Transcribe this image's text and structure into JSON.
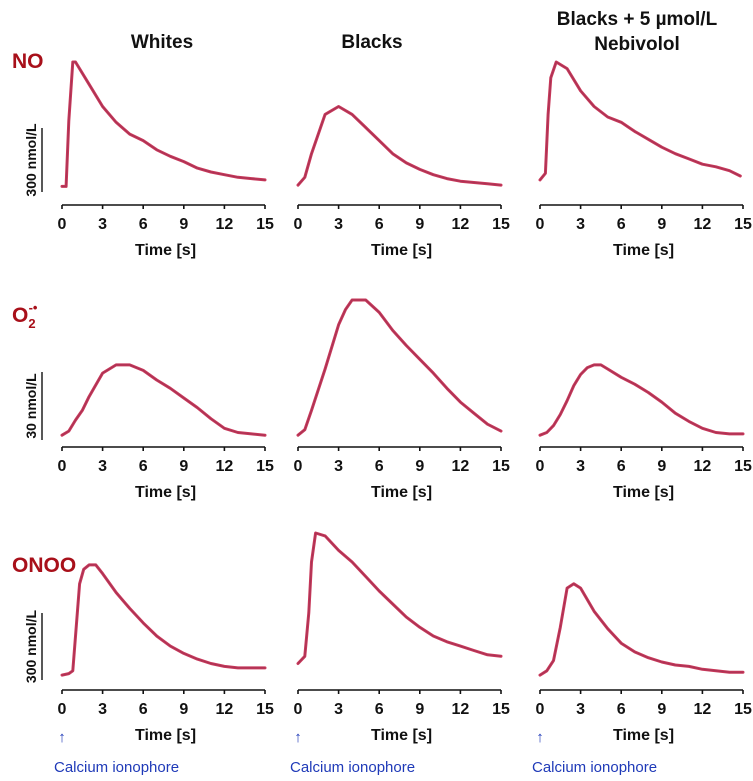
{
  "chart_data": {
    "type": "line",
    "columns": [
      {
        "title_lines": [
          "Whites"
        ]
      },
      {
        "title_lines": [
          "Blacks"
        ]
      },
      {
        "title_lines": [
          "Blacks + 5 µmol/L",
          "Nebivolol"
        ]
      }
    ],
    "rows": [
      {
        "label": "NO",
        "superscript": "",
        "subscript": "",
        "scale_label": "300 nmol/L"
      },
      {
        "label": "O",
        "subscript": "2",
        "superscript": "-•",
        "scale_label": "30 nmol/L"
      },
      {
        "label": "ONOO",
        "superscript": "",
        "subscript": "",
        "scale_label": "300 nmol/L"
      }
    ],
    "xlabel": "Time [s]",
    "xticks": [
      0,
      3,
      6,
      9,
      12,
      15
    ],
    "xlim": [
      0,
      15
    ],
    "ylim_note": "relative concentration, 0 = baseline, 1 = panel maximum",
    "ylim": [
      0,
      1
    ],
    "line_color": "#c8385a",
    "row_label_color": "#a8101a",
    "ionophore": {
      "label": "Calcium ionophore",
      "arrow": "↑",
      "color": "#1f3ab8",
      "time": 0
    },
    "series": [
      {
        "row": 0,
        "col": 0,
        "x": [
          0,
          0.3,
          0.5,
          0.8,
          1.0,
          2,
          3,
          4,
          5,
          6,
          7,
          8,
          9,
          10,
          11,
          12,
          13,
          14,
          15
        ],
        "y": [
          0.05,
          0.05,
          0.55,
          1.0,
          1.0,
          0.83,
          0.66,
          0.54,
          0.45,
          0.4,
          0.33,
          0.28,
          0.24,
          0.19,
          0.16,
          0.14,
          0.12,
          0.11,
          0.1
        ]
      },
      {
        "row": 0,
        "col": 1,
        "x": [
          0,
          0.5,
          1,
          2,
          3,
          4,
          5,
          6,
          7,
          8,
          9,
          10,
          11,
          12,
          13,
          14,
          15
        ],
        "y": [
          0.06,
          0.12,
          0.3,
          0.6,
          0.66,
          0.6,
          0.5,
          0.4,
          0.3,
          0.23,
          0.18,
          0.14,
          0.11,
          0.09,
          0.08,
          0.07,
          0.06
        ]
      },
      {
        "row": 0,
        "col": 2,
        "x": [
          0,
          0.4,
          0.6,
          0.8,
          1.2,
          2,
          3,
          4,
          5,
          6,
          7,
          8,
          9,
          10,
          11,
          12,
          13,
          14,
          14.8
        ],
        "y": [
          0.1,
          0.15,
          0.6,
          0.88,
          1.0,
          0.95,
          0.78,
          0.66,
          0.58,
          0.54,
          0.47,
          0.41,
          0.35,
          0.3,
          0.26,
          0.22,
          0.2,
          0.17,
          0.13
        ]
      },
      {
        "row": 1,
        "col": 0,
        "x": [
          0,
          0.5,
          1,
          1.5,
          2,
          3,
          4,
          5,
          6,
          7,
          8,
          9,
          10,
          11,
          12,
          13,
          14,
          15
        ],
        "y": [
          0.02,
          0.05,
          0.13,
          0.2,
          0.3,
          0.47,
          0.53,
          0.53,
          0.49,
          0.42,
          0.36,
          0.29,
          0.22,
          0.14,
          0.07,
          0.04,
          0.03,
          0.02
        ]
      },
      {
        "row": 1,
        "col": 1,
        "x": [
          0,
          0.5,
          1,
          2,
          3,
          3.5,
          4,
          4.5,
          5,
          6,
          7,
          8,
          9,
          10,
          11,
          12,
          13,
          14,
          15
        ],
        "y": [
          0.02,
          0.06,
          0.2,
          0.5,
          0.82,
          0.93,
          1.0,
          1.0,
          1.0,
          0.91,
          0.78,
          0.67,
          0.57,
          0.47,
          0.36,
          0.26,
          0.18,
          0.1,
          0.05
        ]
      },
      {
        "row": 1,
        "col": 2,
        "x": [
          0,
          0.5,
          1,
          1.5,
          2,
          2.5,
          3,
          3.5,
          4,
          4.5,
          5,
          6,
          7,
          8,
          9,
          10,
          11,
          12,
          13,
          14,
          15
        ],
        "y": [
          0.02,
          0.04,
          0.09,
          0.17,
          0.27,
          0.38,
          0.46,
          0.51,
          0.53,
          0.53,
          0.5,
          0.44,
          0.39,
          0.33,
          0.26,
          0.18,
          0.12,
          0.07,
          0.04,
          0.03,
          0.03
        ]
      },
      {
        "row": 2,
        "col": 0,
        "x": [
          0,
          0.5,
          0.8,
          1.3,
          1.6,
          2,
          2.5,
          3,
          4,
          5,
          6,
          7,
          8,
          9,
          10,
          11,
          12,
          13,
          14,
          15
        ],
        "y": [
          0.02,
          0.03,
          0.05,
          0.65,
          0.75,
          0.78,
          0.78,
          0.72,
          0.59,
          0.48,
          0.38,
          0.29,
          0.22,
          0.17,
          0.13,
          0.1,
          0.08,
          0.07,
          0.07,
          0.07
        ]
      },
      {
        "row": 2,
        "col": 1,
        "x": [
          0,
          0.5,
          0.8,
          1,
          1.3,
          2,
          3,
          4,
          5,
          6,
          7,
          8,
          9,
          10,
          11,
          12,
          13,
          14,
          15
        ],
        "y": [
          0.1,
          0.15,
          0.45,
          0.8,
          1.0,
          0.98,
          0.88,
          0.8,
          0.7,
          0.6,
          0.51,
          0.42,
          0.35,
          0.29,
          0.25,
          0.22,
          0.19,
          0.16,
          0.15
        ]
      },
      {
        "row": 2,
        "col": 2,
        "x": [
          0,
          0.5,
          1,
          1.5,
          2,
          2.5,
          3,
          4,
          5,
          6,
          7,
          8,
          9,
          10,
          11,
          12,
          13,
          14,
          15
        ],
        "y": [
          0.02,
          0.05,
          0.12,
          0.35,
          0.62,
          0.65,
          0.62,
          0.46,
          0.34,
          0.24,
          0.18,
          0.14,
          0.11,
          0.09,
          0.08,
          0.06,
          0.05,
          0.04,
          0.04
        ]
      }
    ]
  }
}
